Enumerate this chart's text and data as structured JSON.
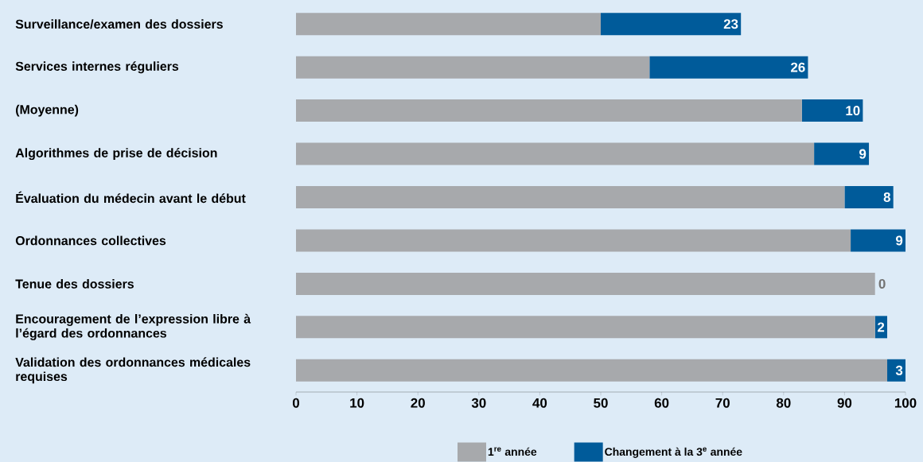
{
  "chart_data": {
    "type": "bar",
    "orientation": "horizontal",
    "stacked": true,
    "categories": [
      "Surveillance/examen des dossiers",
      "Services internes réguliers",
      "(Moyenne)",
      "Algorithmes de prise de décision",
      "Évaluation du médecin avant le début",
      "Ordonnances collectives",
      "Tenue des dossiers",
      "Encouragement de l’expression libre à l’égard des ordonnances",
      "Validation des ordonnances médicales requises"
    ],
    "series": [
      {
        "name": "1$^{re}$ année",
        "color": "#a7a9ac",
        "values": [
          50,
          58,
          83,
          85,
          90,
          91,
          95,
          95,
          97
        ]
      },
      {
        "name": "Changement à la 3$^{e}$ année",
        "color": "#005b9a",
        "values": [
          23,
          26,
          10,
          9,
          8,
          9,
          0,
          2,
          3
        ],
        "value_labels": [
          "23",
          "26",
          "10",
          "9",
          "8",
          "9",
          "0",
          "2",
          "3"
        ]
      }
    ],
    "xlim": [
      0,
      100
    ],
    "xticks": [
      0,
      10,
      20,
      30,
      40,
      50,
      60,
      70,
      80,
      90,
      100
    ],
    "legend": "bottom",
    "grid": false
  }
}
